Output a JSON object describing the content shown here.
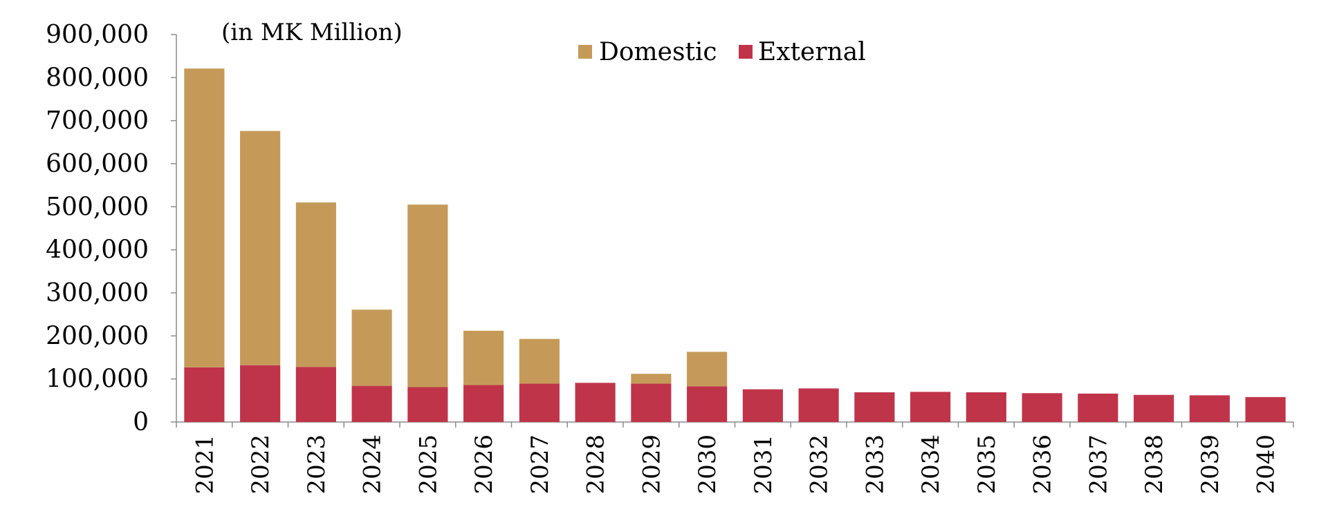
{
  "chart_data": {
    "type": "bar",
    "stacked": true,
    "unit_label": "(in MK Million)",
    "categories": [
      "2021",
      "2022",
      "2023",
      "2024",
      "2025",
      "2026",
      "2027",
      "2028",
      "2029",
      "2030",
      "2031",
      "2032",
      "2033",
      "2034",
      "2035",
      "2036",
      "2037",
      "2038",
      "2039",
      "2040"
    ],
    "series": [
      {
        "name": "External",
        "color": "#c0344a",
        "values": [
          127000,
          132000,
          128000,
          84000,
          81000,
          86000,
          89000,
          91000,
          89000,
          83000,
          76000,
          78000,
          69000,
          70000,
          69000,
          67000,
          66000,
          63000,
          62000,
          58000
        ]
      },
      {
        "name": "Domestic",
        "color": "#c59a58",
        "values": [
          694000,
          544000,
          382000,
          177000,
          424000,
          126000,
          104000,
          0,
          23000,
          80000,
          0,
          0,
          0,
          0,
          0,
          0,
          0,
          0,
          0,
          0
        ]
      }
    ],
    "ylim": [
      0,
      900000
    ],
    "yticks": [
      "0",
      "100,000",
      "200,000",
      "300,000",
      "400,000",
      "500,000",
      "600,000",
      "700,000",
      "800,000",
      "900,000"
    ],
    "ytick_values": [
      0,
      100000,
      200000,
      300000,
      400000,
      500000,
      600000,
      700000,
      800000,
      900000
    ],
    "legend": [
      "Domestic",
      "External"
    ],
    "legend_placement": "top-center",
    "grid": false
  }
}
